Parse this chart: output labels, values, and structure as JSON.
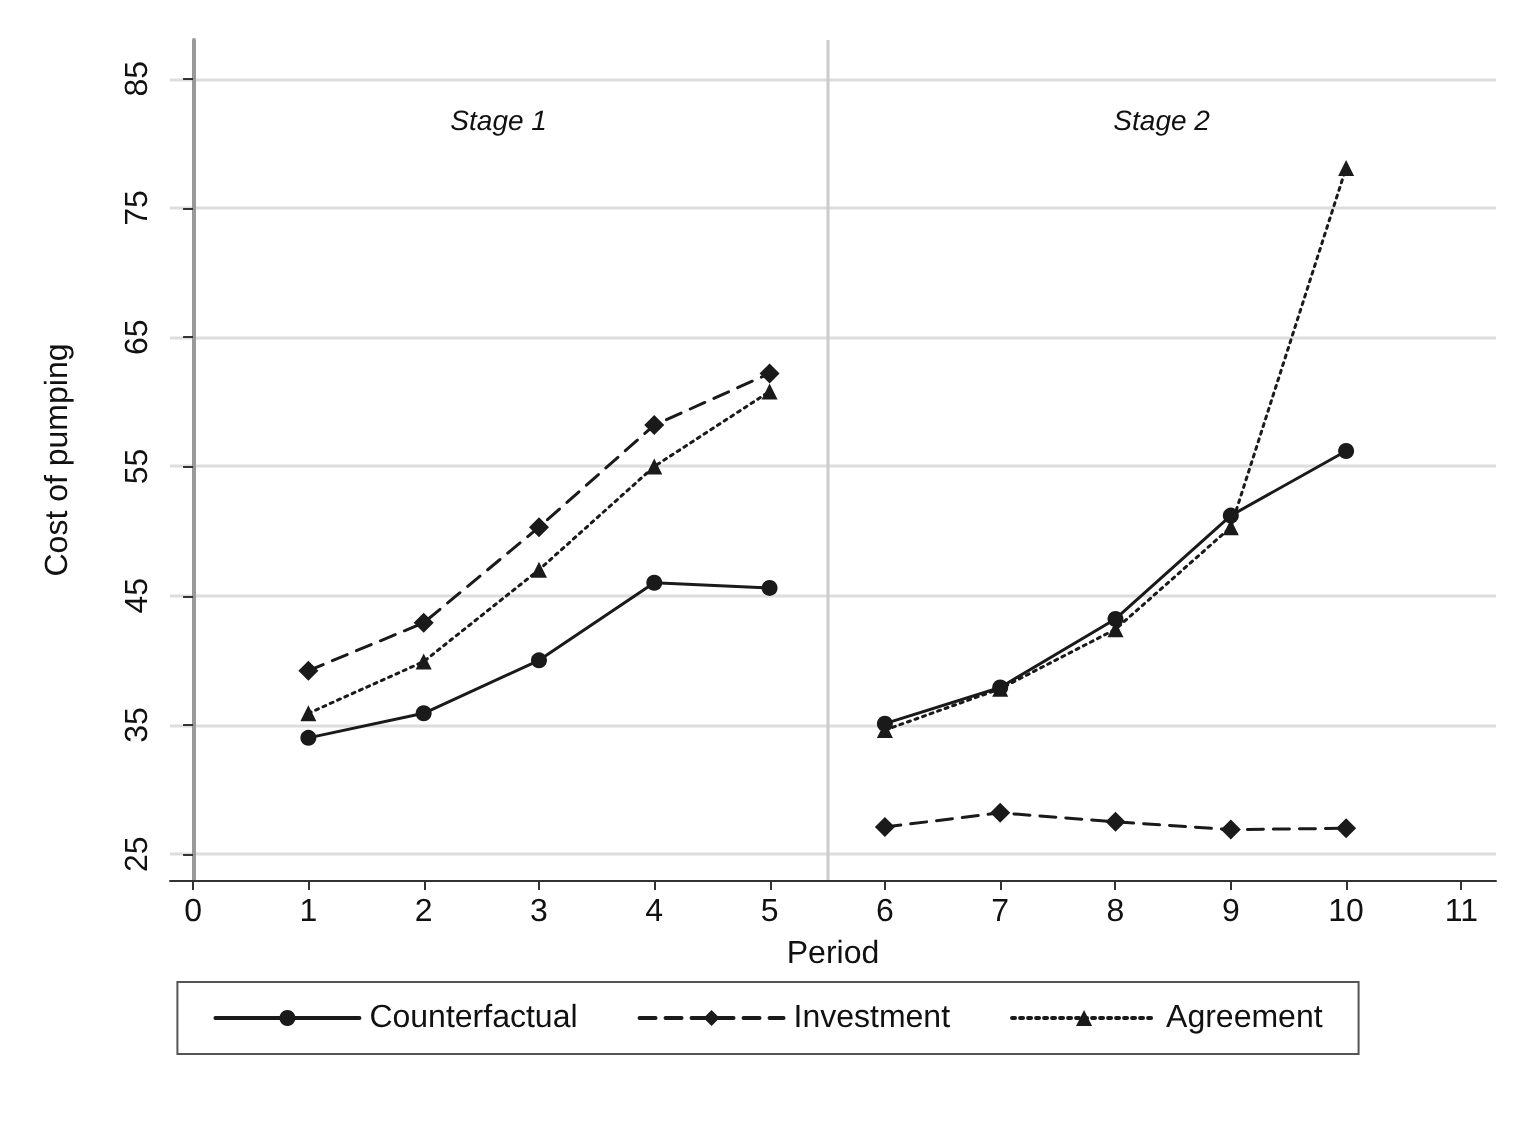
{
  "chart_data": {
    "type": "line",
    "xlabel": "Period",
    "ylabel": "Cost of pumping",
    "annotations": [
      "Stage 1",
      "Stage 2"
    ],
    "x": [
      1,
      2,
      3,
      4,
      5,
      5.5,
      6,
      7,
      8,
      9,
      10
    ],
    "series": [
      {
        "name": "Counterfactual",
        "color": "#1a1a1a",
        "marker": "circle",
        "line_style": "solid",
        "values": [
          34.0,
          35.9,
          40.0,
          46.0,
          45.6,
          null,
          35.1,
          37.9,
          43.2,
          51.2,
          56.2
        ]
      },
      {
        "name": "Investment",
        "color": "#1a1a1a",
        "marker": "diamond",
        "line_style": "dashed",
        "values": [
          39.2,
          42.9,
          50.3,
          58.2,
          62.2,
          null,
          27.1,
          28.2,
          27.5,
          26.9,
          27.0
        ]
      },
      {
        "name": "Agreement",
        "color": "#1a1a1a",
        "marker": "triangle",
        "line_style": "dotted",
        "values": [
          35.9,
          39.9,
          47.0,
          55.0,
          60.8,
          null,
          34.6,
          37.8,
          42.4,
          50.3,
          78.1
        ]
      }
    ],
    "xlim": [
      -0.2,
      11.3
    ],
    "xticks": [
      0,
      1,
      2,
      3,
      4,
      5,
      6,
      7,
      8,
      9,
      10,
      11
    ],
    "ylim": [
      23,
      88
    ],
    "yticks": [
      25,
      35,
      45,
      55,
      65,
      75,
      85
    ],
    "ref_lines": [
      {
        "axis": "x",
        "value": 5.5,
        "label": null,
        "color": "#cccccc"
      }
    ],
    "grid": "y",
    "legend": "bottom"
  }
}
